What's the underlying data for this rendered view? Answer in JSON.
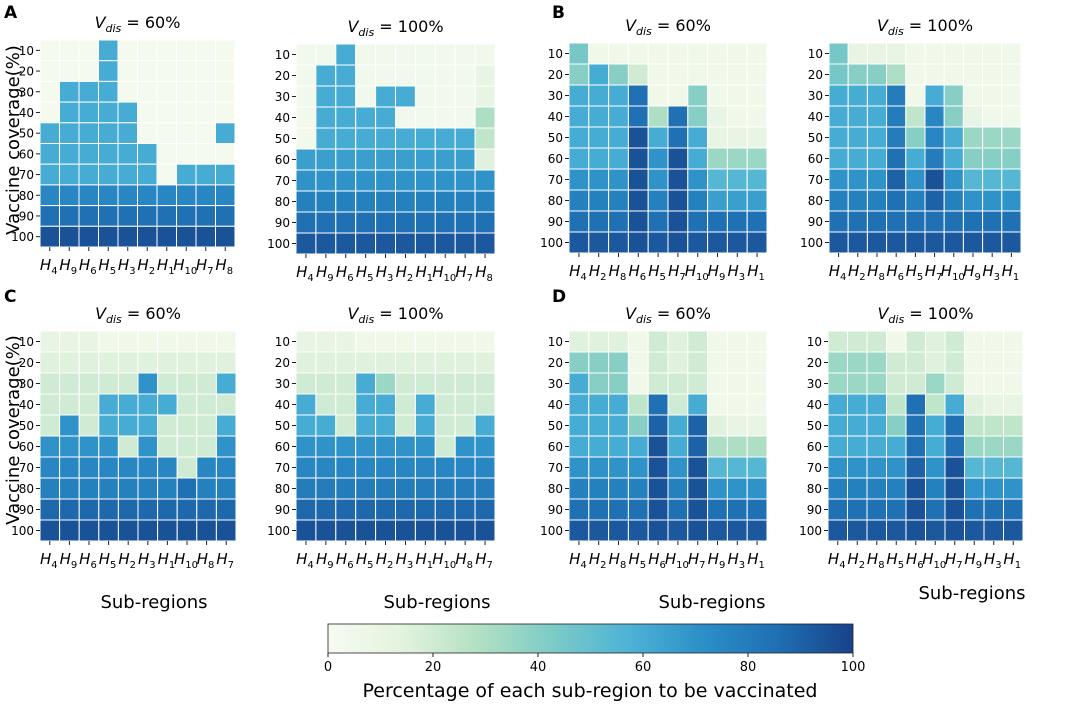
{
  "figure": {
    "ylabel": "Vaccine coverage(%)",
    "xlabel": "Sub-regions",
    "coverage_levels": [
      "10",
      "20",
      "30",
      "40",
      "50",
      "60",
      "70",
      "80",
      "90",
      "100"
    ],
    "colorbar": {
      "label": "Percentage of each sub-region to be vaccinated",
      "ticks": [
        "0",
        "20",
        "40",
        "60",
        "80",
        "100"
      ],
      "stops": [
        "#f7fbf1",
        "#e2f3de",
        "#b3e0c3",
        "#7ccbc6",
        "#4eb3d6",
        "#2b8fc8",
        "#1f6fb3",
        "#18428a"
      ]
    }
  },
  "chart_data": [
    {
      "panel": "A",
      "type": "heatmap",
      "title": "V_dis = 60%",
      "xlabels": [
        "4",
        "9",
        "6",
        "5",
        "3",
        "2",
        "1",
        "10",
        "7",
        "8"
      ],
      "values": [
        [
          2,
          2,
          2,
          60,
          2,
          2,
          2,
          2,
          2,
          2
        ],
        [
          2,
          2,
          2,
          60,
          2,
          2,
          2,
          2,
          2,
          2
        ],
        [
          2,
          60,
          60,
          60,
          2,
          2,
          2,
          2,
          2,
          2
        ],
        [
          2,
          60,
          60,
          60,
          60,
          2,
          2,
          2,
          2,
          2
        ],
        [
          60,
          60,
          60,
          60,
          60,
          2,
          2,
          2,
          2,
          60
        ],
        [
          60,
          60,
          60,
          60,
          60,
          60,
          2,
          2,
          2,
          2
        ],
        [
          60,
          60,
          60,
          60,
          60,
          60,
          2,
          60,
          60,
          60
        ],
        [
          75,
          75,
          75,
          75,
          75,
          75,
          75,
          75,
          75,
          75
        ],
        [
          85,
          85,
          85,
          85,
          85,
          85,
          85,
          85,
          85,
          85
        ],
        [
          95,
          95,
          95,
          95,
          95,
          95,
          95,
          95,
          95,
          95
        ]
      ]
    },
    {
      "panel": "A",
      "type": "heatmap",
      "title": "V_dis = 100%",
      "xlabels": [
        "4",
        "9",
        "6",
        "5",
        "3",
        "2",
        "1",
        "10",
        "7",
        "8"
      ],
      "values": [
        [
          4,
          4,
          60,
          4,
          4,
          4,
          4,
          4,
          4,
          4
        ],
        [
          4,
          60,
          60,
          4,
          4,
          4,
          4,
          4,
          4,
          10
        ],
        [
          4,
          60,
          60,
          4,
          60,
          60,
          4,
          4,
          4,
          10
        ],
        [
          4,
          60,
          60,
          60,
          60,
          4,
          4,
          4,
          4,
          30
        ],
        [
          4,
          60,
          60,
          60,
          60,
          60,
          60,
          60,
          60,
          25
        ],
        [
          65,
          65,
          65,
          65,
          65,
          65,
          65,
          65,
          65,
          15
        ],
        [
          70,
          70,
          70,
          70,
          70,
          70,
          70,
          70,
          70,
          70
        ],
        [
          78,
          78,
          78,
          78,
          78,
          78,
          78,
          78,
          78,
          78
        ],
        [
          85,
          85,
          85,
          85,
          85,
          85,
          85,
          85,
          85,
          85
        ],
        [
          93,
          93,
          93,
          93,
          93,
          93,
          93,
          93,
          93,
          93
        ]
      ]
    },
    {
      "panel": "B",
      "type": "heatmap",
      "title": "V_dis = 60%",
      "xlabels": [
        "4",
        "2",
        "8",
        "6",
        "5",
        "7",
        "10",
        "9",
        "3",
        "1"
      ],
      "values": [
        [
          45,
          5,
          5,
          5,
          5,
          5,
          5,
          5,
          5,
          5
        ],
        [
          40,
          60,
          40,
          20,
          5,
          5,
          5,
          5,
          5,
          5
        ],
        [
          60,
          60,
          60,
          85,
          5,
          5,
          40,
          5,
          5,
          5
        ],
        [
          60,
          60,
          60,
          85,
          30,
          85,
          40,
          10,
          5,
          5
        ],
        [
          60,
          60,
          60,
          95,
          60,
          85,
          60,
          10,
          10,
          10
        ],
        [
          60,
          60,
          60,
          95,
          70,
          95,
          60,
          35,
          35,
          35
        ],
        [
          70,
          70,
          70,
          95,
          70,
          95,
          70,
          55,
          55,
          55
        ],
        [
          78,
          78,
          78,
          95,
          78,
          95,
          78,
          65,
          65,
          65
        ],
        [
          85,
          85,
          85,
          95,
          85,
          95,
          85,
          85,
          85,
          85
        ],
        [
          93,
          93,
          93,
          95,
          93,
          95,
          93,
          93,
          93,
          93
        ]
      ]
    },
    {
      "panel": "B",
      "type": "heatmap",
      "title": "V_dis = 100%",
      "xlabels": [
        "4",
        "2",
        "8",
        "6",
        "5",
        "7",
        "10",
        "9",
        "3",
        "1"
      ],
      "values": [
        [
          45,
          10,
          10,
          10,
          5,
          5,
          5,
          5,
          5,
          5
        ],
        [
          45,
          40,
          40,
          30,
          5,
          5,
          5,
          5,
          5,
          5
        ],
        [
          60,
          60,
          60,
          80,
          5,
          60,
          40,
          5,
          5,
          5
        ],
        [
          60,
          60,
          60,
          80,
          25,
          75,
          40,
          10,
          5,
          5
        ],
        [
          60,
          60,
          60,
          80,
          40,
          75,
          60,
          35,
          35,
          35
        ],
        [
          60,
          60,
          60,
          85,
          60,
          80,
          60,
          40,
          40,
          40
        ],
        [
          70,
          70,
          70,
          90,
          70,
          95,
          70,
          55,
          55,
          55
        ],
        [
          78,
          78,
          78,
          85,
          78,
          90,
          78,
          70,
          70,
          70
        ],
        [
          85,
          85,
          85,
          85,
          85,
          85,
          85,
          85,
          85,
          85
        ],
        [
          93,
          93,
          93,
          93,
          93,
          93,
          93,
          93,
          93,
          93
        ]
      ]
    },
    {
      "panel": "C",
      "type": "heatmap",
      "title": "V_dis = 60%",
      "xlabels": [
        "4",
        "9",
        "6",
        "5",
        "2",
        "3",
        "1",
        "10",
        "8",
        "7"
      ],
      "values": [
        [
          10,
          10,
          10,
          5,
          5,
          5,
          5,
          5,
          5,
          5
        ],
        [
          15,
          15,
          15,
          15,
          15,
          15,
          15,
          15,
          15,
          15
        ],
        [
          20,
          20,
          20,
          20,
          20,
          70,
          20,
          20,
          20,
          60
        ],
        [
          20,
          20,
          20,
          60,
          60,
          60,
          60,
          20,
          20,
          20
        ],
        [
          20,
          70,
          20,
          60,
          60,
          60,
          20,
          20,
          20,
          60
        ],
        [
          70,
          70,
          70,
          70,
          20,
          70,
          20,
          20,
          20,
          70
        ],
        [
          75,
          75,
          75,
          75,
          75,
          75,
          75,
          20,
          75,
          75
        ],
        [
          78,
          78,
          78,
          78,
          78,
          78,
          78,
          85,
          78,
          78
        ],
        [
          88,
          88,
          88,
          88,
          88,
          88,
          88,
          88,
          88,
          88
        ],
        [
          95,
          95,
          95,
          95,
          95,
          95,
          95,
          95,
          95,
          95
        ]
      ]
    },
    {
      "panel": "C",
      "type": "heatmap",
      "title": "V_dis = 100%",
      "xlabels": [
        "4",
        "9",
        "6",
        "5",
        "2",
        "3",
        "1",
        "10",
        "8",
        "7"
      ],
      "values": [
        [
          10,
          10,
          10,
          5,
          5,
          5,
          5,
          5,
          5,
          5
        ],
        [
          15,
          15,
          15,
          15,
          15,
          15,
          15,
          15,
          15,
          15
        ],
        [
          20,
          20,
          20,
          60,
          35,
          20,
          20,
          20,
          20,
          20
        ],
        [
          60,
          20,
          20,
          60,
          60,
          20,
          60,
          20,
          20,
          20
        ],
        [
          60,
          60,
          20,
          60,
          60,
          20,
          60,
          20,
          20,
          60
        ],
        [
          70,
          70,
          70,
          70,
          70,
          70,
          70,
          20,
          70,
          70
        ],
        [
          75,
          75,
          75,
          75,
          75,
          75,
          75,
          75,
          75,
          75
        ],
        [
          80,
          80,
          80,
          80,
          80,
          80,
          80,
          80,
          80,
          80
        ],
        [
          88,
          88,
          88,
          88,
          88,
          88,
          88,
          88,
          88,
          88
        ],
        [
          95,
          95,
          95,
          95,
          95,
          95,
          95,
          95,
          95,
          95
        ]
      ]
    },
    {
      "panel": "D",
      "type": "heatmap",
      "title": "V_dis = 60%",
      "xlabels": [
        "4",
        "2",
        "8",
        "5",
        "6",
        "10",
        "7",
        "9",
        "3",
        "1"
      ],
      "values": [
        [
          15,
          15,
          15,
          5,
          20,
          15,
          20,
          5,
          5,
          5
        ],
        [
          40,
          40,
          40,
          5,
          20,
          15,
          20,
          5,
          5,
          5
        ],
        [
          60,
          40,
          40,
          5,
          20,
          20,
          20,
          5,
          5,
          5
        ],
        [
          60,
          60,
          60,
          25,
          85,
          20,
          60,
          5,
          5,
          5
        ],
        [
          60,
          60,
          60,
          40,
          90,
          60,
          90,
          15,
          10,
          10
        ],
        [
          60,
          60,
          60,
          60,
          95,
          60,
          90,
          30,
          30,
          30
        ],
        [
          70,
          70,
          70,
          70,
          95,
          70,
          95,
          55,
          55,
          55
        ],
        [
          78,
          78,
          78,
          78,
          95,
          78,
          95,
          70,
          70,
          70
        ],
        [
          85,
          85,
          85,
          85,
          95,
          85,
          95,
          85,
          85,
          85
        ],
        [
          93,
          93,
          93,
          93,
          95,
          93,
          95,
          93,
          93,
          93
        ]
      ]
    },
    {
      "panel": "D",
      "type": "heatmap",
      "title": "V_dis = 100%",
      "xlabels": [
        "4",
        "2",
        "8",
        "5",
        "6",
        "10",
        "7",
        "9",
        "3",
        "1"
      ],
      "values": [
        [
          20,
          20,
          20,
          5,
          20,
          15,
          20,
          5,
          5,
          5
        ],
        [
          35,
          35,
          35,
          20,
          20,
          15,
          20,
          5,
          5,
          5
        ],
        [
          35,
          35,
          35,
          20,
          20,
          35,
          20,
          5,
          5,
          5
        ],
        [
          60,
          60,
          60,
          25,
          85,
          25,
          60,
          15,
          10,
          10
        ],
        [
          60,
          60,
          60,
          40,
          85,
          60,
          85,
          25,
          25,
          25
        ],
        [
          60,
          60,
          60,
          60,
          85,
          60,
          85,
          35,
          35,
          35
        ],
        [
          70,
          70,
          70,
          70,
          90,
          70,
          95,
          55,
          55,
          55
        ],
        [
          78,
          78,
          78,
          78,
          95,
          78,
          95,
          70,
          70,
          70
        ],
        [
          85,
          85,
          85,
          85,
          95,
          85,
          95,
          85,
          85,
          85
        ],
        [
          93,
          93,
          93,
          93,
          95,
          93,
          95,
          93,
          93,
          93
        ]
      ]
    }
  ],
  "panels": [
    {
      "label": "A"
    },
    {
      "label": "B"
    },
    {
      "label": "C"
    },
    {
      "label": "D"
    }
  ]
}
